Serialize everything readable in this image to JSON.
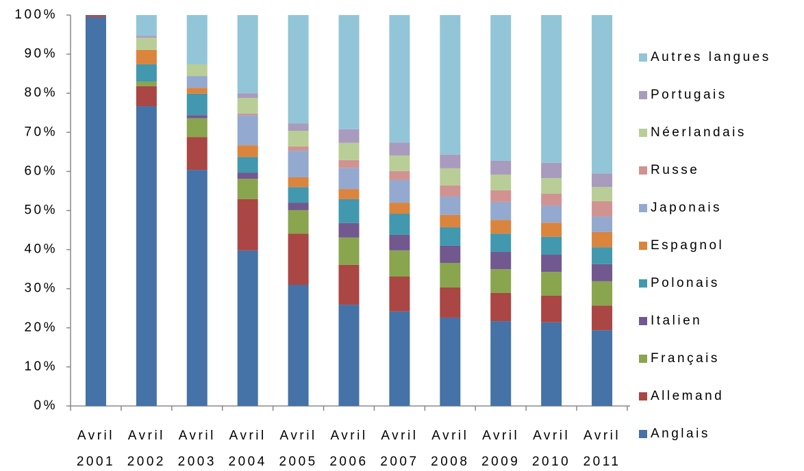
{
  "chart_data": {
    "type": "stacked_bar_100",
    "categories": [
      "Avril 2001",
      "Avril 2002",
      "Avril 2003",
      "Avril 2004",
      "Avril 2005",
      "Avril 2006",
      "Avril 2007",
      "Avril 2008",
      "Avril 2009",
      "Avril 2010",
      "Avril 2011"
    ],
    "series": [
      {
        "name": "Anglais",
        "color": "#4572a7",
        "values": [
          99.5,
          76.7,
          60.4,
          39.8,
          31.0,
          25.9,
          24.2,
          22.6,
          21.7,
          21.4,
          19.4
        ]
      },
      {
        "name": "Allemand",
        "color": "#aa4643",
        "values": [
          0.5,
          5.1,
          8.4,
          13.1,
          13.1,
          10.2,
          8.9,
          7.7,
          7.2,
          6.8,
          6.3
        ]
      },
      {
        "name": "Français",
        "color": "#89a54e",
        "values": [
          0,
          1.2,
          4.8,
          5.2,
          6.0,
          7.0,
          6.7,
          6.3,
          6.1,
          6.1,
          6.2
        ]
      },
      {
        "name": "Italien",
        "color": "#71588f",
        "values": [
          0,
          0,
          0.8,
          1.6,
          1.9,
          3.7,
          4.0,
          4.4,
          4.4,
          4.4,
          4.4
        ]
      },
      {
        "name": "Polonais",
        "color": "#4198af",
        "values": [
          0,
          4.4,
          5.5,
          4.0,
          4.0,
          6.1,
          5.4,
          4.7,
          4.7,
          4.6,
          4.3
        ]
      },
      {
        "name": "Espagnol",
        "color": "#db843d",
        "values": [
          0,
          3.7,
          1.5,
          3.0,
          2.5,
          2.6,
          2.8,
          3.2,
          3.5,
          3.6,
          3.9
        ]
      },
      {
        "name": "Japonais",
        "color": "#93a9cf",
        "values": [
          0,
          0,
          3.0,
          7.7,
          6.8,
          5.4,
          5.8,
          4.7,
          4.6,
          4.4,
          4.0
        ]
      },
      {
        "name": "Russe",
        "color": "#d19392",
        "values": [
          0,
          0,
          0,
          0.4,
          1.1,
          2.0,
          2.3,
          2.8,
          3.0,
          3.0,
          3.9
        ]
      },
      {
        "name": "Néerlandais",
        "color": "#b9cd96",
        "values": [
          0,
          3.1,
          3.0,
          4.0,
          4.0,
          4.4,
          4.0,
          4.4,
          4.0,
          4.0,
          3.6
        ]
      },
      {
        "name": "Portugais",
        "color": "#a99bbd",
        "values": [
          0,
          0.5,
          0,
          1.2,
          1.9,
          3.5,
          3.3,
          3.5,
          3.5,
          3.9,
          3.5
        ]
      },
      {
        "name": "Autres langues",
        "color": "#92c5d8",
        "values": [
          0,
          5.3,
          12.6,
          20.0,
          27.7,
          29.2,
          32.6,
          35.7,
          37.3,
          37.8,
          40.5
        ]
      }
    ],
    "ylim": [
      0,
      100
    ],
    "yticks": [
      {
        "value": 0,
        "label": "0%"
      },
      {
        "value": 10,
        "label": "10%"
      },
      {
        "value": 20,
        "label": "20%"
      },
      {
        "value": 30,
        "label": "30%"
      },
      {
        "value": 40,
        "label": "40%"
      },
      {
        "value": 50,
        "label": "50%"
      },
      {
        "value": 60,
        "label": "60%"
      },
      {
        "value": 70,
        "label": "70%"
      },
      {
        "value": 80,
        "label": "80%"
      },
      {
        "value": 90,
        "label": "90%"
      },
      {
        "value": 100,
        "label": "100%"
      }
    ],
    "grid": false,
    "legend": "right"
  }
}
